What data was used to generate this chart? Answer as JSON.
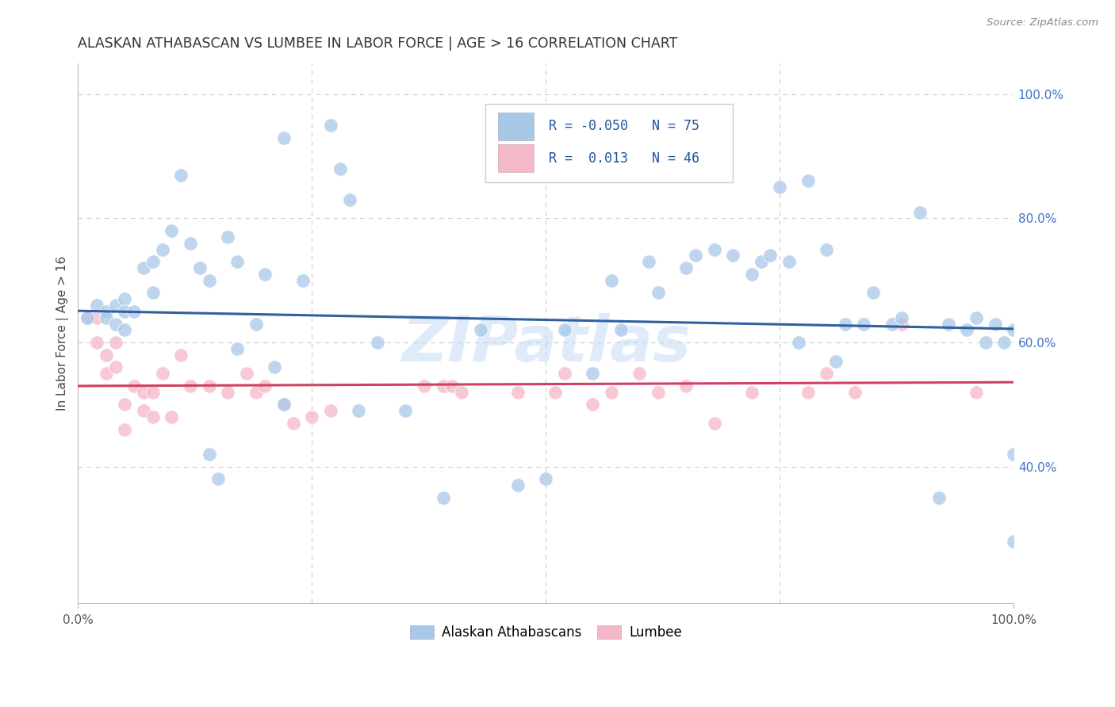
{
  "title": "ALASKAN ATHABASCAN VS LUMBEE IN LABOR FORCE | AGE > 16 CORRELATION CHART",
  "source": "Source: ZipAtlas.com",
  "ylabel": "In Labor Force | Age > 16",
  "ylabel_right_ticks": [
    "40.0%",
    "60.0%",
    "80.0%",
    "100.0%"
  ],
  "ylabel_right_vals": [
    0.4,
    0.6,
    0.8,
    1.0
  ],
  "xmin": 0.0,
  "xmax": 1.0,
  "ymin": 0.18,
  "ymax": 1.05,
  "blue_color": "#a8c8e8",
  "pink_color": "#f4b8c8",
  "blue_line_color": "#3060a0",
  "pink_line_color": "#d04060",
  "grid_color": "#cccccc",
  "watermark": "ZIPatlas",
  "blue_scatter_x": [
    0.01,
    0.02,
    0.03,
    0.03,
    0.04,
    0.04,
    0.05,
    0.05,
    0.05,
    0.06,
    0.07,
    0.08,
    0.08,
    0.09,
    0.1,
    0.11,
    0.12,
    0.13,
    0.14,
    0.14,
    0.15,
    0.16,
    0.17,
    0.17,
    0.19,
    0.2,
    0.21,
    0.22,
    0.22,
    0.24,
    0.27,
    0.28,
    0.29,
    0.3,
    0.32,
    0.35,
    0.39,
    0.43,
    0.47,
    0.5,
    0.52,
    0.55,
    0.57,
    0.58,
    0.61,
    0.62,
    0.65,
    0.66,
    0.68,
    0.7,
    0.72,
    0.73,
    0.74,
    0.75,
    0.76,
    0.77,
    0.78,
    0.8,
    0.81,
    0.82,
    0.84,
    0.85,
    0.87,
    0.88,
    0.9,
    0.92,
    0.93,
    0.95,
    0.96,
    0.97,
    0.98,
    0.99,
    1.0,
    1.0,
    1.0
  ],
  "blue_scatter_y": [
    0.64,
    0.66,
    0.65,
    0.64,
    0.66,
    0.63,
    0.67,
    0.65,
    0.62,
    0.65,
    0.72,
    0.73,
    0.68,
    0.75,
    0.78,
    0.87,
    0.76,
    0.72,
    0.7,
    0.42,
    0.38,
    0.77,
    0.73,
    0.59,
    0.63,
    0.71,
    0.56,
    0.5,
    0.93,
    0.7,
    0.95,
    0.88,
    0.83,
    0.49,
    0.6,
    0.49,
    0.35,
    0.62,
    0.37,
    0.38,
    0.62,
    0.55,
    0.7,
    0.62,
    0.73,
    0.68,
    0.72,
    0.74,
    0.75,
    0.74,
    0.71,
    0.73,
    0.74,
    0.85,
    0.73,
    0.6,
    0.86,
    0.75,
    0.57,
    0.63,
    0.63,
    0.68,
    0.63,
    0.64,
    0.81,
    0.35,
    0.63,
    0.62,
    0.64,
    0.6,
    0.63,
    0.6,
    0.42,
    0.28,
    0.62
  ],
  "pink_scatter_x": [
    0.01,
    0.02,
    0.02,
    0.03,
    0.03,
    0.04,
    0.04,
    0.05,
    0.05,
    0.06,
    0.07,
    0.07,
    0.08,
    0.08,
    0.09,
    0.1,
    0.11,
    0.12,
    0.14,
    0.16,
    0.18,
    0.19,
    0.2,
    0.22,
    0.23,
    0.25,
    0.27,
    0.37,
    0.39,
    0.4,
    0.41,
    0.47,
    0.51,
    0.52,
    0.55,
    0.57,
    0.6,
    0.62,
    0.65,
    0.68,
    0.72,
    0.78,
    0.8,
    0.83,
    0.88,
    0.96
  ],
  "pink_scatter_y": [
    0.64,
    0.64,
    0.6,
    0.58,
    0.55,
    0.6,
    0.56,
    0.46,
    0.5,
    0.53,
    0.52,
    0.49,
    0.52,
    0.48,
    0.55,
    0.48,
    0.58,
    0.53,
    0.53,
    0.52,
    0.55,
    0.52,
    0.53,
    0.5,
    0.47,
    0.48,
    0.49,
    0.53,
    0.53,
    0.53,
    0.52,
    0.52,
    0.52,
    0.55,
    0.5,
    0.52,
    0.55,
    0.52,
    0.53,
    0.47,
    0.52,
    0.52,
    0.55,
    0.52,
    0.63,
    0.52
  ],
  "blue_trend_x": [
    0.0,
    1.0
  ],
  "blue_trend_y": [
    0.651,
    0.622
  ],
  "pink_trend_x": [
    0.0,
    1.0
  ],
  "pink_trend_y": [
    0.53,
    0.536
  ]
}
